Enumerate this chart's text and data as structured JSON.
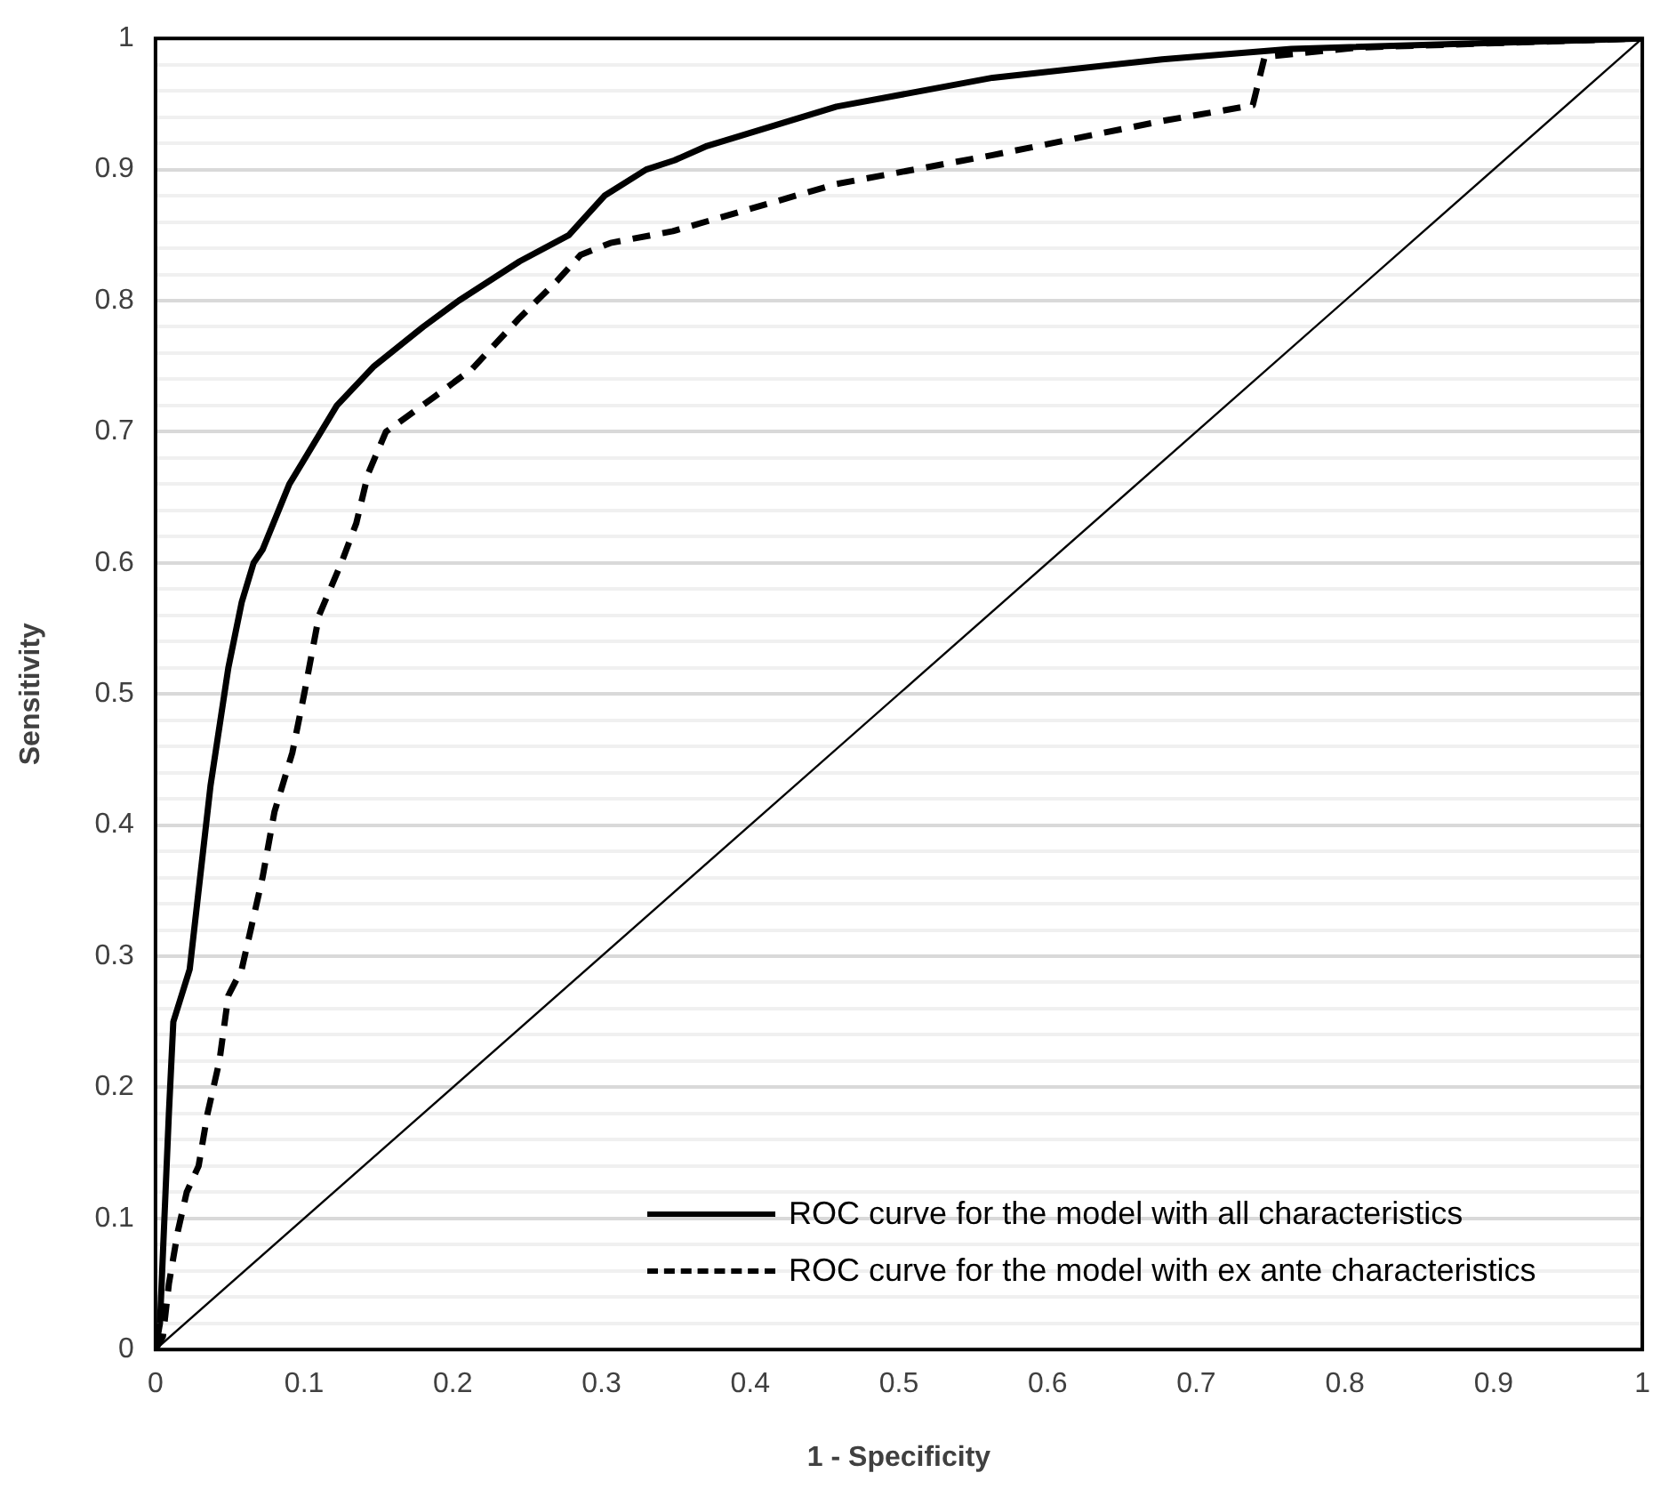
{
  "chart_data": {
    "type": "line",
    "xlabel": "1 - Specificity",
    "ylabel": "Sensitivity",
    "xlim": [
      0,
      1
    ],
    "ylim": [
      0,
      1
    ],
    "xticks": [
      0,
      0.1,
      0.2,
      0.3,
      0.4,
      0.5,
      0.6,
      0.7,
      0.8,
      0.9,
      1
    ],
    "yticks": [
      0,
      {
        "value": 0.02,
        "label": null
      },
      {
        "value": 0.04,
        "label": null
      },
      {
        "value": 0.06,
        "label": null
      },
      {
        "value": 0.08,
        "label": null
      },
      0.1,
      {
        "value": 0.12,
        "label": null
      },
      {
        "value": 0.14,
        "label": null
      },
      {
        "value": 0.16,
        "label": null
      },
      {
        "value": 0.18,
        "label": null
      },
      0.2,
      {
        "value": 0.22,
        "label": null
      },
      {
        "value": 0.24,
        "label": null
      },
      {
        "value": 0.26,
        "label": null
      },
      {
        "value": 0.28,
        "label": null
      },
      0.3,
      {
        "value": 0.32,
        "label": null
      },
      {
        "value": 0.34,
        "label": null
      },
      {
        "value": 0.36,
        "label": null
      },
      {
        "value": 0.38,
        "label": null
      },
      0.4,
      {
        "value": 0.42,
        "label": null
      },
      {
        "value": 0.44,
        "label": null
      },
      {
        "value": 0.46,
        "label": null
      },
      {
        "value": 0.48,
        "label": null
      },
      0.5,
      {
        "value": 0.52,
        "label": null
      },
      {
        "value": 0.54,
        "label": null
      },
      {
        "value": 0.56,
        "label": null
      },
      {
        "value": 0.58,
        "label": null
      },
      0.6,
      {
        "value": 0.62,
        "label": null
      },
      {
        "value": 0.64,
        "label": null
      },
      {
        "value": 0.66,
        "label": null
      },
      {
        "value": 0.68,
        "label": null
      },
      0.7,
      {
        "value": 0.72,
        "label": null
      },
      {
        "value": 0.74,
        "label": null
      },
      {
        "value": 0.76,
        "label": null
      },
      {
        "value": 0.78,
        "label": null
      },
      0.8,
      {
        "value": 0.82,
        "label": null
      },
      {
        "value": 0.84,
        "label": null
      },
      {
        "value": 0.86,
        "label": null
      },
      {
        "value": 0.88,
        "label": null
      },
      0.9,
      {
        "value": 0.92,
        "label": null
      },
      {
        "value": 0.94,
        "label": null
      },
      {
        "value": 0.96,
        "label": null
      },
      {
        "value": 0.98,
        "label": null
      },
      1
    ],
    "grid": "y",
    "legend": "bottom right",
    "marker": "none",
    "series": [
      {
        "name": "ROC curve for the model with all characteristics",
        "color": "#000000",
        "line_style": "solid",
        "x": [
          0,
          0.003,
          0.009,
          0.012,
          0.023,
          0.037,
          0.049,
          0.058,
          0.066,
          0.072,
          0.09,
          0.122,
          0.147,
          0.18,
          0.204,
          0.245,
          0.278,
          0.302,
          0.33,
          0.349,
          0.371,
          0.458,
          0.563,
          0.677,
          0.764,
          1
        ],
        "values": [
          0,
          0.02,
          0.18,
          0.25,
          0.29,
          0.43,
          0.52,
          0.57,
          0.6,
          0.61,
          0.66,
          0.72,
          0.75,
          0.78,
          0.8,
          0.83,
          0.85,
          0.88,
          0.9,
          0.907,
          0.918,
          0.948,
          0.97,
          0.984,
          0.992,
          1
        ]
      },
      {
        "name": "ROC curve for the model with ex ante characteristics",
        "color": "#000000",
        "line_style": "dashed",
        "x": [
          0,
          0.005,
          0.009,
          0.015,
          0.021,
          0.029,
          0.035,
          0.043,
          0.049,
          0.058,
          0.066,
          0.072,
          0.08,
          0.092,
          0.1,
          0.11,
          0.125,
          0.135,
          0.143,
          0.155,
          0.188,
          0.213,
          0.245,
          0.27,
          0.286,
          0.306,
          0.348,
          0.458,
          0.563,
          0.677,
          0.738,
          0.746,
          0.808,
          1
        ],
        "values": [
          0,
          0.01,
          0.05,
          0.09,
          0.12,
          0.14,
          0.18,
          0.22,
          0.27,
          0.29,
          0.33,
          0.36,
          0.41,
          0.455,
          0.5,
          0.56,
          0.6,
          0.63,
          0.668,
          0.7,
          0.727,
          0.748,
          0.787,
          0.815,
          0.835,
          0.844,
          0.853,
          0.889,
          0.911,
          0.937,
          0.949,
          0.986,
          0.993,
          1
        ]
      },
      {
        "color": "#000000",
        "line_style": "solid",
        "x": [
          0,
          1
        ],
        "values": [
          0,
          1
        ]
      }
    ]
  }
}
